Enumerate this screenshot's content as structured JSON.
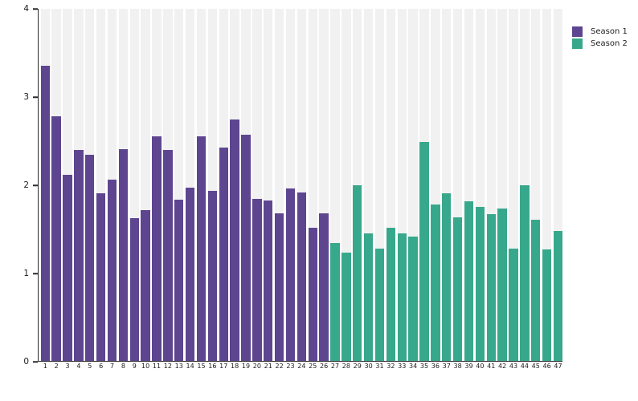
{
  "chart_data": {
    "type": "bar",
    "title": "",
    "xlabel": "",
    "ylabel": "",
    "ylim": [
      0,
      4
    ],
    "yticks": [
      0,
      1,
      2,
      3,
      4
    ],
    "grid": "vertical-category-bands",
    "legend_position": "top-right",
    "panel_band_color": "#f1f1f1",
    "background_color": "#ffffff",
    "axis_color": "#2b2b2b",
    "categories": [
      "1",
      "2",
      "3",
      "4",
      "5",
      "6",
      "7",
      "8",
      "9",
      "10",
      "11",
      "12",
      "13",
      "14",
      "15",
      "16",
      "17",
      "18",
      "19",
      "20",
      "21",
      "22",
      "23",
      "24",
      "25",
      "26",
      "27",
      "28",
      "29",
      "30",
      "31",
      "32",
      "33",
      "34",
      "35",
      "36",
      "37",
      "38",
      "39",
      "40",
      "41",
      "42",
      "43",
      "44",
      "45",
      "46",
      "47"
    ],
    "series": [
      {
        "name": "Season 1",
        "color": "#5e4590",
        "categories": [
          "1",
          "2",
          "3",
          "4",
          "5",
          "6",
          "7",
          "8",
          "9",
          "10",
          "11",
          "12",
          "13",
          "14",
          "15",
          "16",
          "17",
          "18",
          "19",
          "20",
          "21",
          "22",
          "23",
          "24",
          "25",
          "26"
        ],
        "values": [
          3.35,
          2.78,
          2.11,
          2.4,
          2.34,
          1.9,
          2.06,
          2.41,
          1.62,
          1.71,
          2.55,
          2.4,
          1.83,
          1.97,
          2.55,
          1.93,
          2.42,
          2.74,
          2.57,
          1.84,
          1.82,
          1.68,
          1.96,
          1.91,
          1.51,
          1.68
        ]
      },
      {
        "name": "Season 2",
        "color": "#38a88c",
        "categories": [
          "27",
          "28",
          "29",
          "30",
          "31",
          "32",
          "33",
          "34",
          "35",
          "36",
          "37",
          "38",
          "39",
          "40",
          "41",
          "42",
          "43",
          "44",
          "45",
          "46",
          "47"
        ],
        "values": [
          1.34,
          1.23,
          2.0,
          1.45,
          1.28,
          1.51,
          1.45,
          1.41,
          2.49,
          1.78,
          1.9,
          1.63,
          1.81,
          1.75,
          1.67,
          1.73,
          1.28,
          2.0,
          1.6,
          1.27,
          1.48
        ]
      }
    ]
  }
}
